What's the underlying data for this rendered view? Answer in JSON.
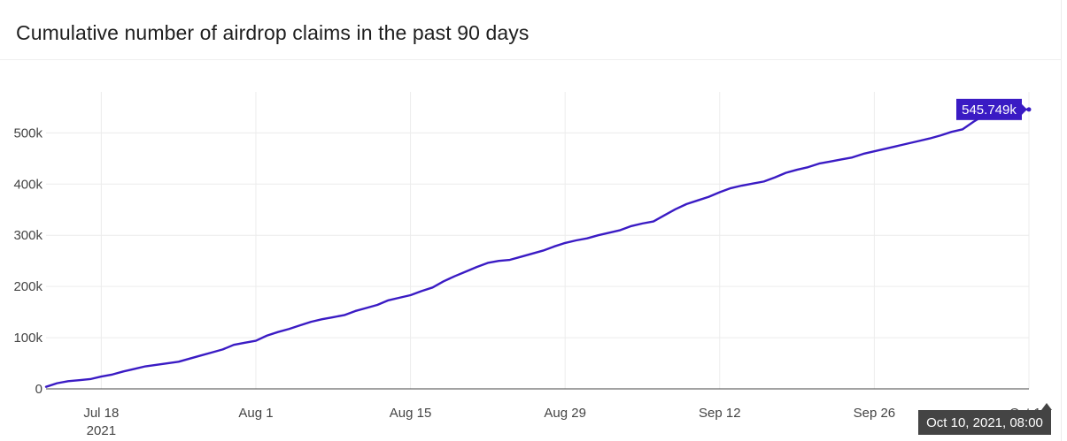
{
  "title": "Cumulative number of airdrop claims in the past 90 days",
  "chart_data": {
    "type": "line",
    "title": "Cumulative number of airdrop claims in the past 90 days",
    "xlabel": "",
    "ylabel": "",
    "ylim": [
      0,
      560000
    ],
    "xlim": [
      "2021-07-13",
      "2021-10-10"
    ],
    "x_ticks": [
      {
        "date": "2021-07-18",
        "label": "Jul 18",
        "sublabel": "2021"
      },
      {
        "date": "2021-08-01",
        "label": "Aug 1",
        "sublabel": ""
      },
      {
        "date": "2021-08-15",
        "label": "Aug 15",
        "sublabel": ""
      },
      {
        "date": "2021-08-29",
        "label": "Aug 29",
        "sublabel": ""
      },
      {
        "date": "2021-09-12",
        "label": "Sep 12",
        "sublabel": ""
      },
      {
        "date": "2021-09-26",
        "label": "Sep 26",
        "sublabel": ""
      },
      {
        "date": "2021-10-10",
        "label": "Oct 10",
        "sublabel": ""
      }
    ],
    "y_ticks": [
      {
        "value": 0,
        "label": "0"
      },
      {
        "value": 100000,
        "label": "100k"
      },
      {
        "value": 200000,
        "label": "200k"
      },
      {
        "value": 300000,
        "label": "300k"
      },
      {
        "value": 400000,
        "label": "400k"
      },
      {
        "value": 500000,
        "label": "500k"
      }
    ],
    "grid": true,
    "line_color": "#3a1bc4",
    "series": [
      {
        "x": [
          "2021-07-13",
          "2021-07-14",
          "2021-07-15",
          "2021-07-16",
          "2021-07-17",
          "2021-07-18",
          "2021-07-19",
          "2021-07-20",
          "2021-07-21",
          "2021-07-22",
          "2021-07-23",
          "2021-07-24",
          "2021-07-25",
          "2021-07-26",
          "2021-07-27",
          "2021-07-28",
          "2021-07-29",
          "2021-07-30",
          "2021-07-31",
          "2021-08-01",
          "2021-08-02",
          "2021-08-03",
          "2021-08-04",
          "2021-08-05",
          "2021-08-06",
          "2021-08-07",
          "2021-08-08",
          "2021-08-09",
          "2021-08-10",
          "2021-08-11",
          "2021-08-12",
          "2021-08-13",
          "2021-08-14",
          "2021-08-15",
          "2021-08-16",
          "2021-08-17",
          "2021-08-18",
          "2021-08-19",
          "2021-08-20",
          "2021-08-21",
          "2021-08-22",
          "2021-08-23",
          "2021-08-24",
          "2021-08-25",
          "2021-08-26",
          "2021-08-27",
          "2021-08-28",
          "2021-08-29",
          "2021-08-30",
          "2021-08-31",
          "2021-09-01",
          "2021-09-02",
          "2021-09-03",
          "2021-09-04",
          "2021-09-05",
          "2021-09-06",
          "2021-09-07",
          "2021-09-08",
          "2021-09-09",
          "2021-09-10",
          "2021-09-11",
          "2021-09-12",
          "2021-09-13",
          "2021-09-14",
          "2021-09-15",
          "2021-09-16",
          "2021-09-17",
          "2021-09-18",
          "2021-09-19",
          "2021-09-20",
          "2021-09-21",
          "2021-09-22",
          "2021-09-23",
          "2021-09-24",
          "2021-09-25",
          "2021-09-26",
          "2021-09-27",
          "2021-09-28",
          "2021-09-29",
          "2021-09-30",
          "2021-10-01",
          "2021-10-02",
          "2021-10-03",
          "2021-10-04",
          "2021-10-05",
          "2021-10-06",
          "2021-10-07",
          "2021-10-08",
          "2021-10-09",
          "2021-10-10"
        ],
        "y": [
          4000,
          11000,
          15000,
          17000,
          19000,
          24000,
          28000,
          34000,
          39000,
          44000,
          47000,
          50000,
          53000,
          59000,
          65000,
          71000,
          77000,
          86000,
          90000,
          94000,
          104000,
          111000,
          117000,
          124000,
          131000,
          136000,
          140000,
          144000,
          152000,
          158000,
          164000,
          173000,
          178000,
          183000,
          191000,
          198000,
          210000,
          220000,
          229000,
          238000,
          246000,
          250000,
          252000,
          258000,
          264000,
          270000,
          278000,
          285000,
          290000,
          294000,
          300000,
          305000,
          310000,
          318000,
          323000,
          327000,
          339000,
          351000,
          361000,
          368000,
          375000,
          384000,
          392000,
          397000,
          401000,
          405000,
          413000,
          422000,
          428000,
          433000,
          440000,
          444000,
          448000,
          452000,
          459000,
          464000,
          469000,
          474000,
          479000,
          484000,
          489000,
          495000,
          502000,
          507000,
          522000,
          535000,
          541000,
          545000,
          545500,
          545749
        ]
      }
    ],
    "hover": {
      "label": "545.749k",
      "x_label": "Oct 10, 2021, 08:00"
    }
  }
}
